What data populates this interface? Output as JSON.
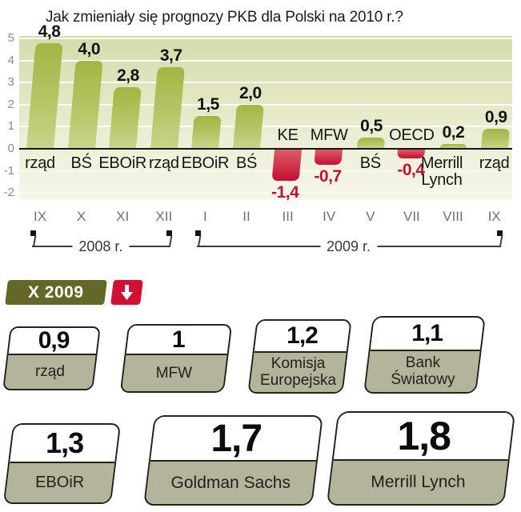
{
  "title": "Jak zmieniały się prognozy PKB dla Polski na 2010 r.?",
  "chart_data": {
    "type": "bar",
    "title": "Jak zmieniały się prognozy PKB dla Polski na 2010 r.?",
    "ylim": [
      -2,
      5
    ],
    "yticks": [
      5,
      4,
      3,
      2,
      1,
      0,
      -1,
      -2
    ],
    "ytick_labels": [
      "5",
      "4",
      "3",
      "2",
      "1",
      "0",
      "-1",
      "-2"
    ],
    "grid": true,
    "legend_position": "none",
    "categories": [
      "rząd",
      "BŚ",
      "EBOiR",
      "rząd",
      "EBOiR",
      "BŚ",
      "KE",
      "MFW",
      "BŚ",
      "OECD",
      "Merrill Lynch",
      "rząd"
    ],
    "values": [
      4.8,
      4.0,
      2.8,
      3.7,
      1.5,
      2.0,
      -1.4,
      -0.7,
      0.5,
      -0.4,
      0.2,
      0.9
    ],
    "value_labels": [
      "4,8",
      "4,0",
      "2,8",
      "3,7",
      "1,5",
      "2,0",
      "-1,4",
      "-0,7",
      "0,5",
      "-0,4",
      "0,2",
      "0,9"
    ],
    "bar_colors": {
      "positive": "#a3b542",
      "negative": "#c40f34"
    },
    "months": [
      "IX",
      "X",
      "XI",
      "XII",
      "I",
      "II",
      "III",
      "IV",
      "V",
      "VII",
      "VIII",
      "IX"
    ],
    "year_brackets": [
      {
        "label": "2008 r.",
        "from_month_index": 0,
        "to_month_index": 3
      },
      {
        "label": "2009 r.",
        "from_month_index": 4,
        "to_month_index": 11
      }
    ]
  },
  "update_badge": {
    "label": "X 2009",
    "badge_color": "#636828",
    "arrow_icon": "down-arrow",
    "arrow_color": "#ce1135"
  },
  "forecast_cards": [
    {
      "value": "0,9",
      "label": "rząd"
    },
    {
      "value": "1",
      "label": "MFW"
    },
    {
      "value": "1,2",
      "label": "Komisja Europejska"
    },
    {
      "value": "1,1",
      "label": "Bank Światowy"
    },
    {
      "value": "1,3",
      "label": "EBOiR"
    },
    {
      "value": "1,7",
      "label": "Goldman Sachs"
    },
    {
      "value": "1,8",
      "label": "Merrill Lynch"
    }
  ]
}
